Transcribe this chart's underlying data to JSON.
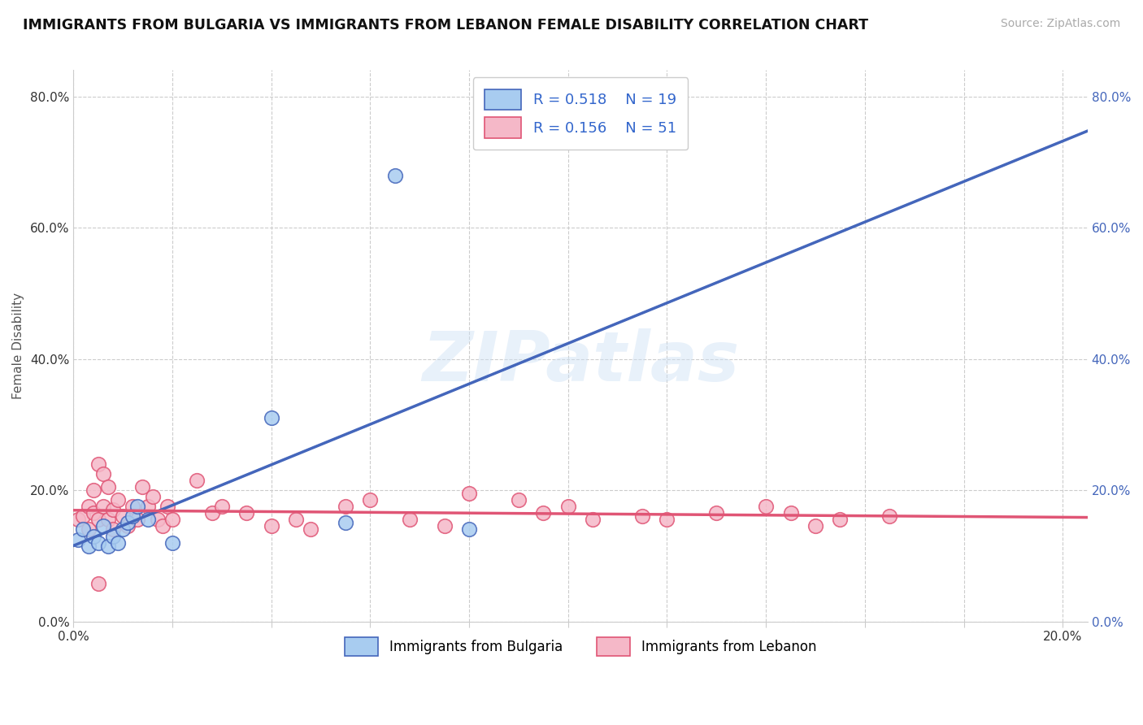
{
  "title": "IMMIGRANTS FROM BULGARIA VS IMMIGRANTS FROM LEBANON FEMALE DISABILITY CORRELATION CHART",
  "source": "Source: ZipAtlas.com",
  "ylabel": "Female Disability",
  "xlim": [
    0.0,
    0.205
  ],
  "ylim": [
    -0.05,
    0.88
  ],
  "plot_ylim": [
    0.0,
    0.84
  ],
  "xticks": [
    0.0,
    0.02,
    0.04,
    0.06,
    0.08,
    0.1,
    0.12,
    0.14,
    0.16,
    0.18,
    0.2
  ],
  "yticks": [
    0.0,
    0.2,
    0.4,
    0.6,
    0.8
  ],
  "watermark": "ZIPatlas",
  "r_bulgaria": "0.518",
  "n_bulgaria": "19",
  "r_lebanon": "0.156",
  "n_lebanon": "51",
  "bulgaria_face": "#a8ccf0",
  "bulgaria_edge": "#4466bb",
  "lebanon_face": "#f5b8c8",
  "lebanon_edge": "#e05575",
  "bulgaria_line": "#4466bb",
  "lebanon_line": "#e05575",
  "dash_line": "#88aadd",
  "bg": "#ffffff",
  "left_tick_color": "#333333",
  "right_tick_color": "#4466bb",
  "bulgaria_x": [
    0.001,
    0.002,
    0.003,
    0.004,
    0.005,
    0.006,
    0.007,
    0.008,
    0.009,
    0.01,
    0.011,
    0.012,
    0.013,
    0.015,
    0.02,
    0.04,
    0.055,
    0.08,
    0.065
  ],
  "bulgaria_y": [
    0.125,
    0.14,
    0.115,
    0.13,
    0.12,
    0.145,
    0.115,
    0.13,
    0.12,
    0.14,
    0.15,
    0.16,
    0.175,
    0.155,
    0.12,
    0.31,
    0.15,
    0.14,
    0.68
  ],
  "lebanon_x": [
    0.001,
    0.002,
    0.003,
    0.003,
    0.004,
    0.004,
    0.005,
    0.005,
    0.006,
    0.006,
    0.007,
    0.007,
    0.008,
    0.008,
    0.009,
    0.01,
    0.011,
    0.012,
    0.013,
    0.014,
    0.015,
    0.016,
    0.017,
    0.018,
    0.019,
    0.02,
    0.025,
    0.028,
    0.03,
    0.035,
    0.04,
    0.045,
    0.048,
    0.055,
    0.06,
    0.068,
    0.075,
    0.08,
    0.09,
    0.095,
    0.1,
    0.105,
    0.115,
    0.12,
    0.13,
    0.14,
    0.145,
    0.15,
    0.155,
    0.165,
    0.005
  ],
  "lebanon_y": [
    0.155,
    0.16,
    0.175,
    0.14,
    0.165,
    0.2,
    0.24,
    0.155,
    0.225,
    0.175,
    0.205,
    0.155,
    0.17,
    0.14,
    0.185,
    0.16,
    0.145,
    0.175,
    0.155,
    0.205,
    0.175,
    0.19,
    0.155,
    0.145,
    0.175,
    0.155,
    0.215,
    0.165,
    0.175,
    0.165,
    0.145,
    0.155,
    0.14,
    0.175,
    0.185,
    0.155,
    0.145,
    0.195,
    0.185,
    0.165,
    0.175,
    0.155,
    0.16,
    0.155,
    0.165,
    0.175,
    0.165,
    0.145,
    0.155,
    0.16,
    0.058
  ]
}
